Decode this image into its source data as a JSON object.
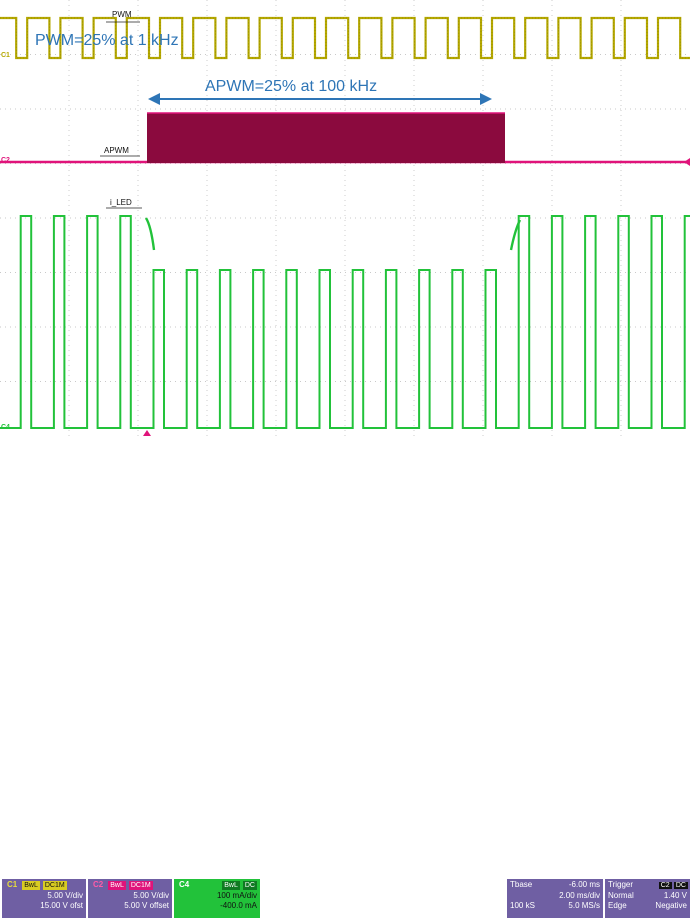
{
  "annotations": {
    "pwm_note": "PWM=25% at 1 kHz",
    "apwm_note": "APWM=25% at 100 kHz"
  },
  "trace_labels": {
    "pwm": "PWM",
    "apwm": "APWM",
    "iled": "i_LED"
  },
  "channel_markers": {
    "c1": "C1",
    "c2": "C2",
    "c4": "C4"
  },
  "colors": {
    "c1": "#b5a800",
    "c2": "#e0137a",
    "c2_fill": "#8b0a3e",
    "c4": "#22c23a",
    "arrow": "#2e75b6",
    "grid": "#b8b8b8",
    "panel": "#6f5fa3"
  },
  "channels": [
    {
      "name": "C1",
      "badge_bw": "BwL",
      "badge_coupling": "DC1M",
      "line1": "5.00 V/div",
      "line2": "15.00 V ofst"
    },
    {
      "name": "C2",
      "badge_bw": "BwL",
      "badge_coupling": "DC1M",
      "line1": "5.00 V/div",
      "line2": "5.00 V offset"
    },
    {
      "name": "C4",
      "badge_bw": "BwL",
      "badge_coupling": "DC",
      "line1": "100 mA/div",
      "line2": "-400.0 mA"
    }
  ],
  "timebase": {
    "label": "Tbase",
    "delay": "-6.00 ms",
    "scale": "2.00 ms/div",
    "points": "100 kS",
    "rate": "5.0 MS/s"
  },
  "trigger": {
    "label": "Trigger",
    "source": "C2",
    "coupling": "DC",
    "mode": "Normal",
    "level": "1.40 V",
    "type": "Edge",
    "slope": "Negative"
  }
}
